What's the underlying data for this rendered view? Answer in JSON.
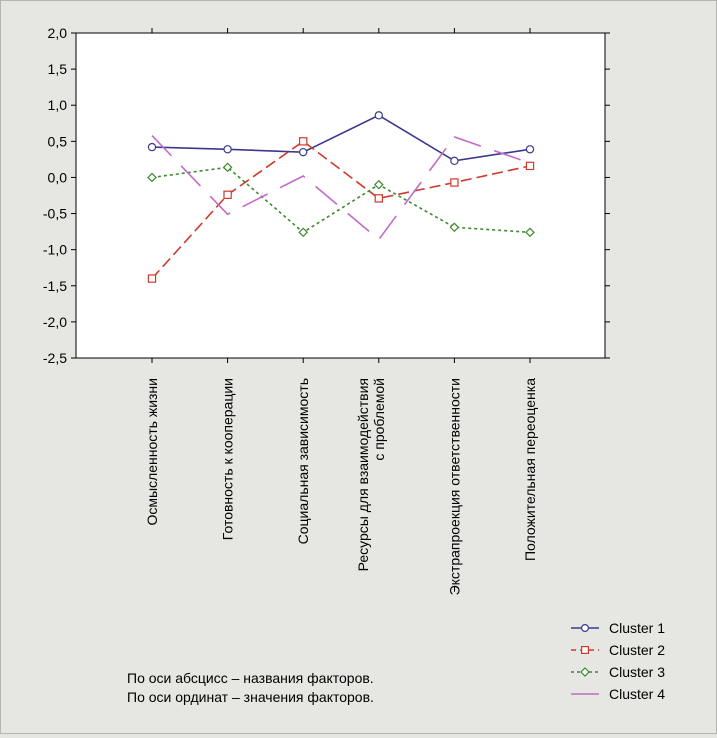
{
  "chart_data": {
    "type": "line",
    "categories": [
      [
        "Осмысленность жизни"
      ],
      [
        "Готовность к кооперации"
      ],
      [
        "Социальная зависимость"
      ],
      [
        "Ресурсы для взаимодействия",
        "с проблемой"
      ],
      [
        "Экстрапроекция ответственности"
      ],
      [
        "Положительная переоценка"
      ]
    ],
    "ylim": [
      -2.5,
      2.0
    ],
    "yticks": [
      "2,0",
      "1,5",
      "1,0",
      "0,5",
      "0,0",
      "-0,5",
      "-1,0",
      "-1,5",
      "-2,0",
      "-2,5"
    ],
    "grid": false,
    "legend_position": "bottom-right",
    "series": [
      {
        "name": "Cluster  1",
        "values": [
          0.42,
          0.39,
          0.35,
          0.86,
          0.23,
          0.39
        ],
        "color": "#3a3a8c",
        "marker": "circle",
        "dash": ""
      },
      {
        "name": "Cluster  2",
        "values": [
          -1.4,
          -0.24,
          0.5,
          -0.29,
          -0.07,
          0.16
        ],
        "color": "#d0392b",
        "marker": "square",
        "dash": "11,5"
      },
      {
        "name": "Cluster  3",
        "values": [
          0.0,
          0.14,
          -0.76,
          -0.1,
          -0.69,
          -0.76
        ],
        "color": "#3c8a2c",
        "marker": "diamond",
        "dash": "3,3"
      },
      {
        "name": "Cluster  4",
        "values": [
          0.58,
          -0.51,
          0.02,
          -0.86,
          0.56,
          0.2
        ],
        "color": "#c36ac9",
        "marker": "none",
        "dash": "28,14"
      }
    ]
  },
  "notes": {
    "line1": "По оси абсцисс – названия факторов.",
    "line2": "По оси ординат – значения факторов."
  }
}
